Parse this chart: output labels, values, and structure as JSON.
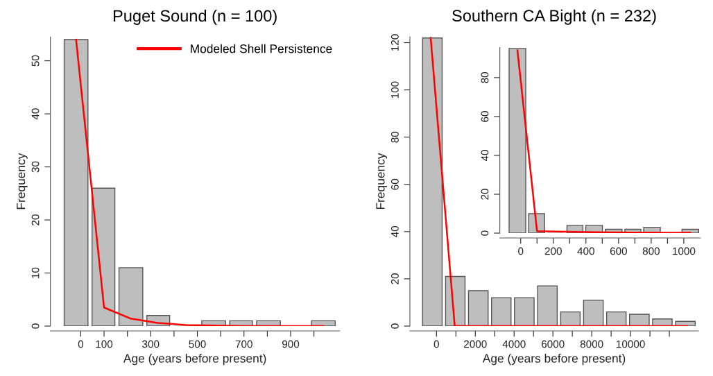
{
  "chart_data": [
    {
      "type": "histogram",
      "title": "Puget Sound (n = 100)",
      "xlabel": "Age (years before present)",
      "ylabel": "Frequency",
      "xlim": [
        -130,
        1110
      ],
      "ylim": [
        0,
        54.5
      ],
      "xticks": [
        0,
        100,
        {
          "value": 200,
          "label": null
        },
        300,
        {
          "value": 400,
          "label": null
        },
        500,
        {
          "value": 600,
          "label": null
        },
        700,
        {
          "value": 800,
          "label": null
        },
        900,
        {
          "value": 1000,
          "label": null
        }
      ],
      "yticks": [
        0,
        10,
        20,
        30,
        40,
        50
      ],
      "legend": "top right",
      "grid": false,
      "series": [
        {
          "color": "#bebebe",
          "bins": [
            -80,
            40,
            155,
            275,
            390,
            510,
            630,
            745,
            865,
            980,
            1100
          ],
          "values": [
            54,
            26,
            11,
            2,
            0,
            1,
            1,
            1,
            0,
            1
          ]
        },
        {
          "type": "line",
          "name": "Modeled Shell Persistence",
          "color": "#ff0000",
          "x": [
            -20,
            100,
            215,
            330,
            450,
            570,
            690,
            805,
            920,
            1040
          ],
          "values": [
            54,
            3.5,
            1.4,
            0.6,
            0.2,
            0.1,
            0,
            0,
            0,
            0
          ]
        }
      ]
    },
    {
      "type": "histogram",
      "title": "Southern CA Bight (n = 232)",
      "xlabel": "Age (years before present)",
      "ylabel": "Frequency",
      "xlim": [
        -1370,
        13500
      ],
      "ylim": [
        0,
        122.5
      ],
      "xticks": [
        0,
        {
          "value": 1000,
          "label": null
        },
        2000,
        {
          "value": 3000,
          "label": null
        },
        4000,
        {
          "value": 5000,
          "label": null
        },
        6000,
        {
          "value": 7000,
          "label": null
        },
        8000,
        {
          "value": 9000,
          "label": null
        },
        10000,
        {
          "value": 11000,
          "label": null
        },
        {
          "value": 12000,
          "label": null
        }
      ],
      "yticks": [
        0,
        20,
        40,
        60,
        80,
        100,
        120
      ],
      "grid": false,
      "series": [
        {
          "color": "#bebebe",
          "bins": [
            -810,
            380,
            1560,
            2750,
            3930,
            5120,
            6310,
            7490,
            8680,
            9860,
            11050,
            12230,
            13420
          ],
          "values": [
            122,
            21,
            15,
            12,
            12,
            17,
            6,
            11,
            6,
            5,
            3,
            2
          ]
        },
        {
          "type": "line",
          "color": "#ff0000",
          "x": [
            -300,
            940,
            2160,
            3340,
            4530,
            5710,
            6900,
            8090,
            9270,
            10460,
            11640,
            12900
          ],
          "values": [
            122,
            0,
            0,
            0,
            0,
            0,
            0,
            0,
            0,
            0,
            0,
            0
          ]
        }
      ]
    },
    {
      "type": "histogram",
      "xlim": [
        -128,
        1102
      ],
      "ylim": [
        0,
        95.5
      ],
      "xticks": [
        0,
        {
          "value": 100,
          "label": null
        },
        200,
        {
          "value": 300,
          "label": null
        },
        400,
        {
          "value": 500,
          "label": null
        },
        600,
        {
          "value": 700,
          "label": null
        },
        800,
        {
          "value": 900,
          "label": null
        },
        1000
      ],
      "yticks": [
        0,
        20,
        40,
        60,
        80
      ],
      "grid": false,
      "series": [
        {
          "color": "#bebebe",
          "bins": [
            -80,
            40,
            155,
            275,
            390,
            510,
            630,
            745,
            865,
            980,
            1100
          ],
          "values": [
            95,
            10,
            0,
            4,
            4,
            2,
            2,
            3,
            0,
            2
          ]
        },
        {
          "type": "line",
          "color": "#ff0000",
          "x": [
            -20,
            100,
            215,
            330,
            450,
            570,
            690,
            805,
            920,
            1040
          ],
          "values": [
            94,
            1,
            0.8,
            0.6,
            0.5,
            0.4,
            0.3,
            0.3,
            0.2,
            0.2
          ]
        }
      ]
    }
  ]
}
